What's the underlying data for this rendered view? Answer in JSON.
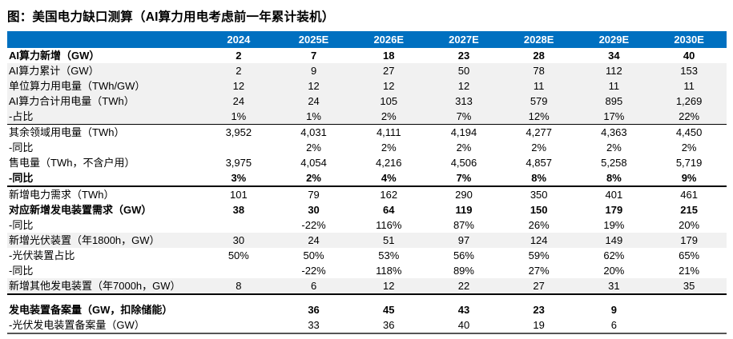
{
  "title": "图：美国电力缺口测算（AI算力用电考虑前一年累计装机）",
  "colors": {
    "header_bg": "#0070C0",
    "header_text": "#FFFFFF",
    "shaded_row": "#F1F1F1",
    "section_border": "#000000",
    "bottom_border": "#555555"
  },
  "table": {
    "columns": [
      "2024",
      "2025E",
      "2026E",
      "2027E",
      "2028E",
      "2029E",
      "2030E"
    ],
    "rows": [
      {
        "label": "AI算力新增（GW）",
        "bold": true,
        "shaded": false,
        "values": [
          "2",
          "7",
          "18",
          "23",
          "28",
          "34",
          "40"
        ]
      },
      {
        "label": "AI算力累计（GW）",
        "bold": false,
        "shaded": true,
        "values": [
          "2",
          "9",
          "27",
          "50",
          "78",
          "112",
          "153"
        ]
      },
      {
        "label": "单位算力用电量（TWh/GW）",
        "bold": false,
        "shaded": true,
        "values": [
          "12",
          "12",
          "12",
          "12",
          "11",
          "11",
          "11"
        ]
      },
      {
        "label": "AI算力合计用电量（TWh）",
        "bold": false,
        "shaded": true,
        "values": [
          "24",
          "24",
          "105",
          "313",
          "579",
          "895",
          "1,269"
        ]
      },
      {
        "label": "-占比",
        "bold": false,
        "shaded": true,
        "border": "thin",
        "values": [
          "1%",
          "1%",
          "2%",
          "7%",
          "12%",
          "17%",
          "22%"
        ]
      },
      {
        "label": "其余领域用电量（TWh）",
        "bold": false,
        "shaded": false,
        "values": [
          "3,952",
          "4,031",
          "4,111",
          "4,194",
          "4,277",
          "4,363",
          "4,450"
        ]
      },
      {
        "label": "-同比",
        "bold": false,
        "shaded": false,
        "values": [
          "",
          "2%",
          "2%",
          "2%",
          "2%",
          "2%",
          "2%"
        ]
      },
      {
        "label": "售电量（TWh，不含户用）",
        "bold": false,
        "shaded": false,
        "values": [
          "3,975",
          "4,054",
          "4,216",
          "4,506",
          "4,857",
          "5,258",
          "5,719"
        ]
      },
      {
        "label": "-同比",
        "bold": true,
        "shaded": false,
        "border": "thick",
        "values": [
          "3%",
          "2%",
          "4%",
          "7%",
          "8%",
          "8%",
          "9%"
        ]
      },
      {
        "label": "新增电力需求（TWh）",
        "bold": false,
        "shaded": false,
        "values": [
          "101",
          "79",
          "162",
          "290",
          "350",
          "401",
          "461"
        ]
      },
      {
        "label": "对应新增发电装置需求（GW）",
        "bold": true,
        "shaded": false,
        "values": [
          "38",
          "30",
          "64",
          "119",
          "150",
          "179",
          "215"
        ]
      },
      {
        "label": "-同比",
        "bold": false,
        "shaded": false,
        "values": [
          "",
          "-22%",
          "116%",
          "87%",
          "26%",
          "19%",
          "20%"
        ]
      },
      {
        "label": "新增光伏装置（年1800h，GW）",
        "bold": false,
        "shaded": true,
        "values": [
          "30",
          "24",
          "51",
          "97",
          "124",
          "149",
          "179"
        ]
      },
      {
        "label": "-光伏装置占比",
        "bold": false,
        "shaded": false,
        "values": [
          "50%",
          "50%",
          "53%",
          "56%",
          "59%",
          "62%",
          "65%"
        ]
      },
      {
        "label": "-同比",
        "bold": false,
        "shaded": false,
        "values": [
          "",
          "-22%",
          "118%",
          "89%",
          "27%",
          "20%",
          "21%"
        ]
      },
      {
        "label": "新增其他发电装置（年7000h，GW）",
        "bold": false,
        "shaded": true,
        "border": "thick",
        "values": [
          "8",
          "6",
          "12",
          "22",
          "27",
          "31",
          "35"
        ]
      },
      {
        "label": "",
        "spacer": true,
        "values": [
          "",
          "",
          "",
          "",
          "",
          "",
          ""
        ]
      },
      {
        "label": "发电装置备案量（GW，扣除储能）",
        "bold": true,
        "shaded": false,
        "values": [
          "",
          "36",
          "45",
          "43",
          "23",
          "9",
          ""
        ]
      },
      {
        "label": "-光伏发电装置备案量（GW）",
        "bold": false,
        "shaded": false,
        "border": "bottom",
        "values": [
          "",
          "33",
          "36",
          "40",
          "19",
          "6",
          ""
        ]
      }
    ]
  }
}
